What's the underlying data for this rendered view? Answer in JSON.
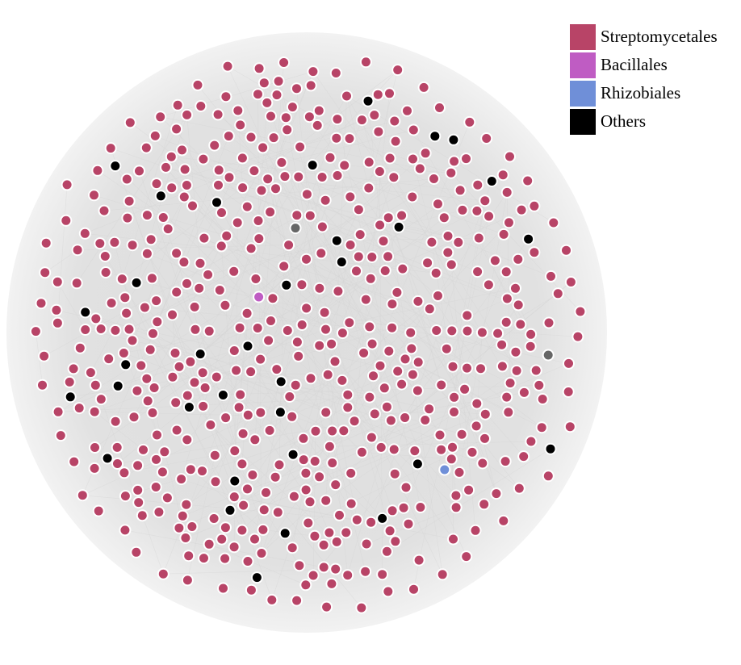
{
  "legend": {
    "items": [
      {
        "label": "Streptomycetales",
        "color": "#b84467"
      },
      {
        "label": "Bacillales",
        "color": "#bf5cc3"
      },
      {
        "label": "Rhizobiales",
        "color": "#6f8fd8"
      },
      {
        "label": "Others",
        "color": "#000000"
      }
    ]
  },
  "network": {
    "layout": "circular-packed",
    "edge_color": "#d5d5d5",
    "node_stroke": "#ffffff",
    "node_counts": {
      "Streptomycetales": 520,
      "Others": 33,
      "Rhizobiales": 1,
      "Bacillales": 1,
      "Unclassified": 2
    },
    "unclassified_color": "#666666"
  }
}
